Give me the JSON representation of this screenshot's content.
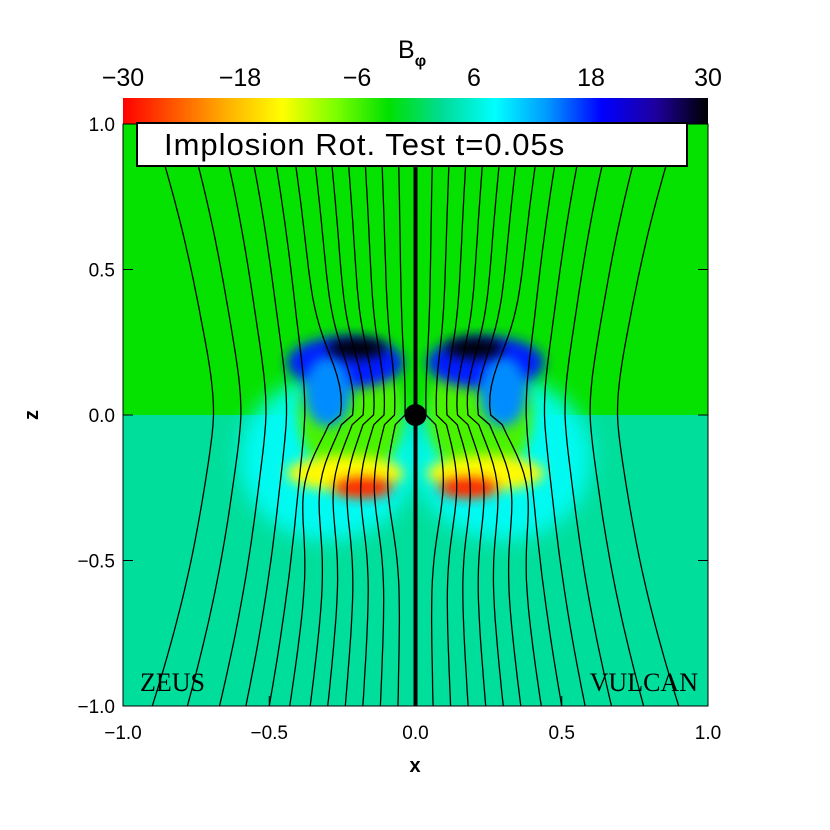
{
  "colorbar": {
    "label": "B",
    "label_sub": "φ",
    "ticks": [
      "−30",
      "−18",
      "−6",
      "6",
      "18",
      "30"
    ],
    "stops": [
      "#ff0000",
      "#ff5a00",
      "#ffb400",
      "#ffff00",
      "#7cff00",
      "#00e000",
      "#00dc96",
      "#00ffff",
      "#0096ff",
      "#0000ff",
      "#1e00a0",
      "#000000"
    ]
  },
  "title_box": {
    "text": "Implosion Rot. Test t=0.05s"
  },
  "panels": {
    "left": "ZEUS",
    "right": "VULCAN"
  },
  "axes": {
    "xlabel": "x",
    "ylabel": "z",
    "xticks": [
      "−1.0",
      "−0.5",
      "0.0",
      "0.5",
      "1.0"
    ],
    "yticks": [
      "1.0",
      "0.5",
      "0.0",
      "−0.5",
      "−1.0"
    ]
  },
  "chart_data": {
    "type": "heatmap",
    "title": "Implosion Rot. Test t=0.05s",
    "xlabel": "x",
    "ylabel": "z",
    "xlim": [
      -1.0,
      1.0
    ],
    "ylim": [
      -1.0,
      1.0
    ],
    "colorbar_label": "Bφ",
    "colorbar_range": [
      -30,
      30
    ],
    "colorbar_ticks": [
      -30,
      -18,
      -6,
      6,
      18,
      30
    ],
    "panels": [
      "ZEUS",
      "VULCAN"
    ],
    "background": {
      "upper_half_value": -3,
      "lower_half_value": 3
    },
    "features": [
      {
        "x": -0.2,
        "z": 0.23,
        "value": 30
      },
      {
        "x": 0.2,
        "z": 0.23,
        "value": 30
      },
      {
        "x": -0.18,
        "z": -0.25,
        "value": -28
      },
      {
        "x": 0.18,
        "z": -0.25,
        "value": -28
      }
    ],
    "field_lines_x_at_top": [
      -0.9,
      -0.78,
      -0.67,
      -0.58,
      -0.5,
      -0.43,
      -0.36,
      -0.3,
      -0.24,
      -0.18,
      -0.12,
      -0.06,
      0.06,
      0.12,
      0.18,
      0.24,
      0.3,
      0.36,
      0.43,
      0.5,
      0.58,
      0.67,
      0.78,
      0.9
    ],
    "central_object": {
      "x": 0.0,
      "z": 0.0
    }
  }
}
